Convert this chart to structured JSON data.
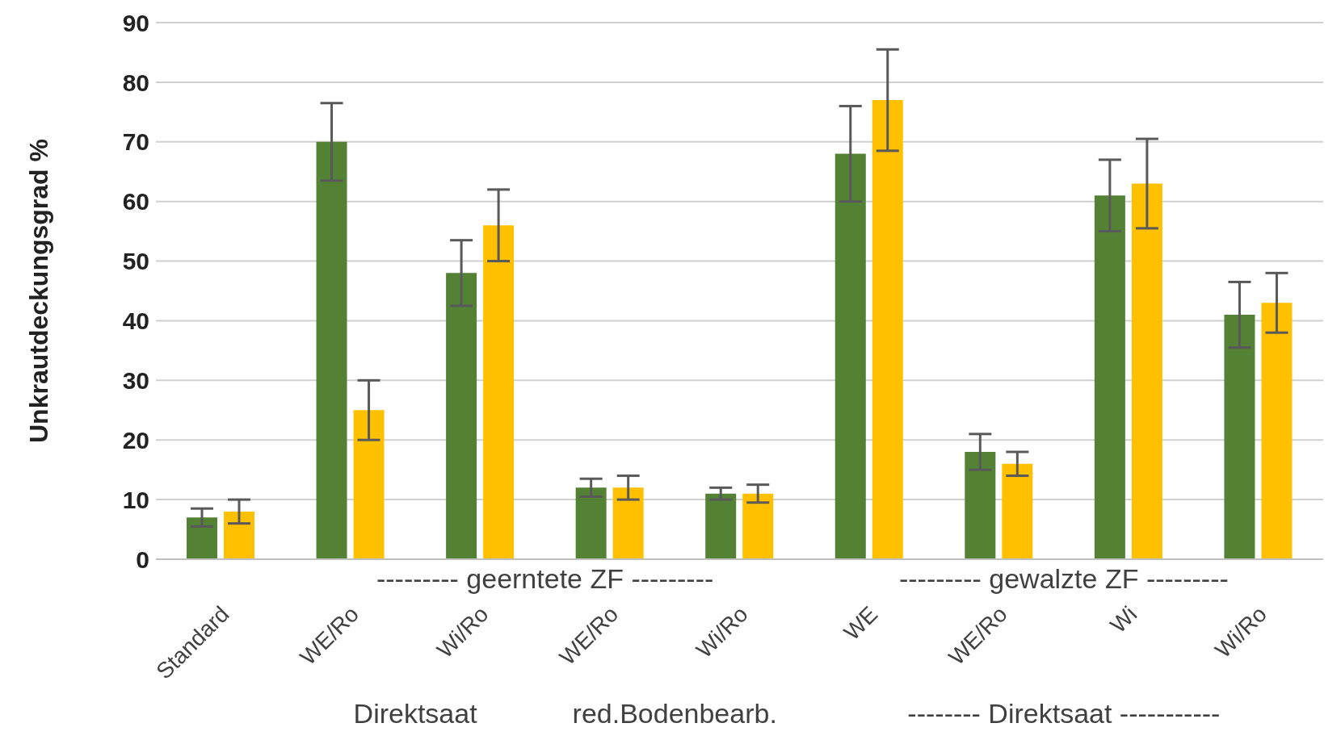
{
  "chart_data": {
    "type": "bar",
    "ylabel": "Unkrautdeckungsgrad %",
    "categories": [
      "Standard",
      "WE/Ro",
      "Wi/Ro",
      "WE/Ro",
      "Wi/Ro",
      "WE",
      "WE/Ro",
      "Wi",
      "Wi/Ro"
    ],
    "series": [
      {
        "color": "#548235",
        "values": [
          7,
          70,
          48,
          12,
          11,
          68,
          18,
          61,
          41
        ],
        "errors": [
          1.5,
          6.5,
          5.5,
          1.5,
          1,
          8,
          3,
          6,
          5.5
        ]
      },
      {
        "color": "#ffc000",
        "values": [
          8,
          25,
          56,
          12,
          11,
          77,
          16,
          63,
          43
        ],
        "errors": [
          2,
          5,
          6,
          2,
          1.5,
          8.5,
          2,
          7.5,
          5
        ]
      }
    ],
    "ylim": [
      0,
      90
    ],
    "yticks": [
      0,
      10,
      20,
      30,
      40,
      50,
      60,
      70,
      80,
      90
    ],
    "grid": "y",
    "annotations": [
      "--------- geerntete ZF ---------",
      "--------- gewalzte ZF ---------",
      "Direktsaat",
      "red.Bodenbearb.",
      "-------- Direktsaat -----------"
    ]
  }
}
